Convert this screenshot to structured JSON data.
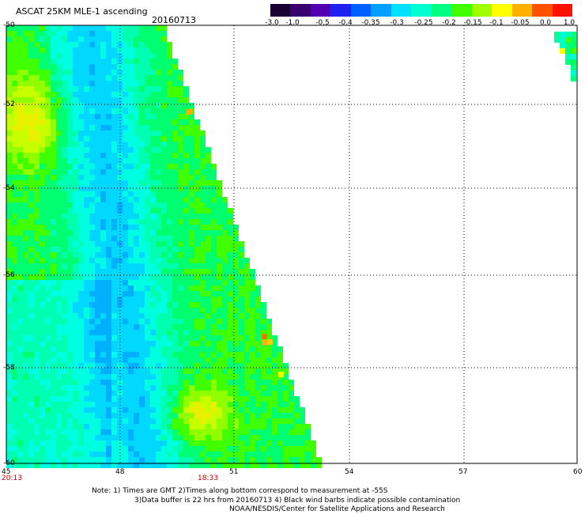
{
  "header": {
    "title": "ASCAT 25KM MLE-1 ascending",
    "date": "20160713"
  },
  "colorbar": {
    "labels": [
      "-3.0",
      "-1.0",
      "-0.5",
      "-0.4",
      "-0.35",
      "-0.3",
      "-0.25",
      "-0.2",
      "-0.15",
      "-0.1",
      "-0.05",
      "0.0",
      "1.0"
    ],
    "colors": [
      "#1a0030",
      "#3a0070",
      "#5000b0",
      "#2020f0",
      "#0060ff",
      "#00a0ff",
      "#00e0ff",
      "#00ffd0",
      "#00ff80",
      "#40ff00",
      "#a0ff00",
      "#ffff00",
      "#ffb000",
      "#ff5000",
      "#ff1000"
    ]
  },
  "axes": {
    "y_labels": [
      "-50",
      "-52",
      "-54",
      "-56",
      "-58",
      "-60"
    ],
    "x_labels": [
      "45",
      "48",
      "51",
      "54",
      "57",
      "60"
    ],
    "times": [
      "20:13",
      "18:33"
    ]
  },
  "notes": {
    "line1": "Note: 1) Times are GMT 2)Times along bottom correspond to measurement at -55S",
    "line2": "3)Data buffer is 22 hrs from 20160713 4) Black wind barbs indicate possible contamination",
    "line3": "NOAA/NESDIS/Center for Satellite Applications and Research"
  }
}
